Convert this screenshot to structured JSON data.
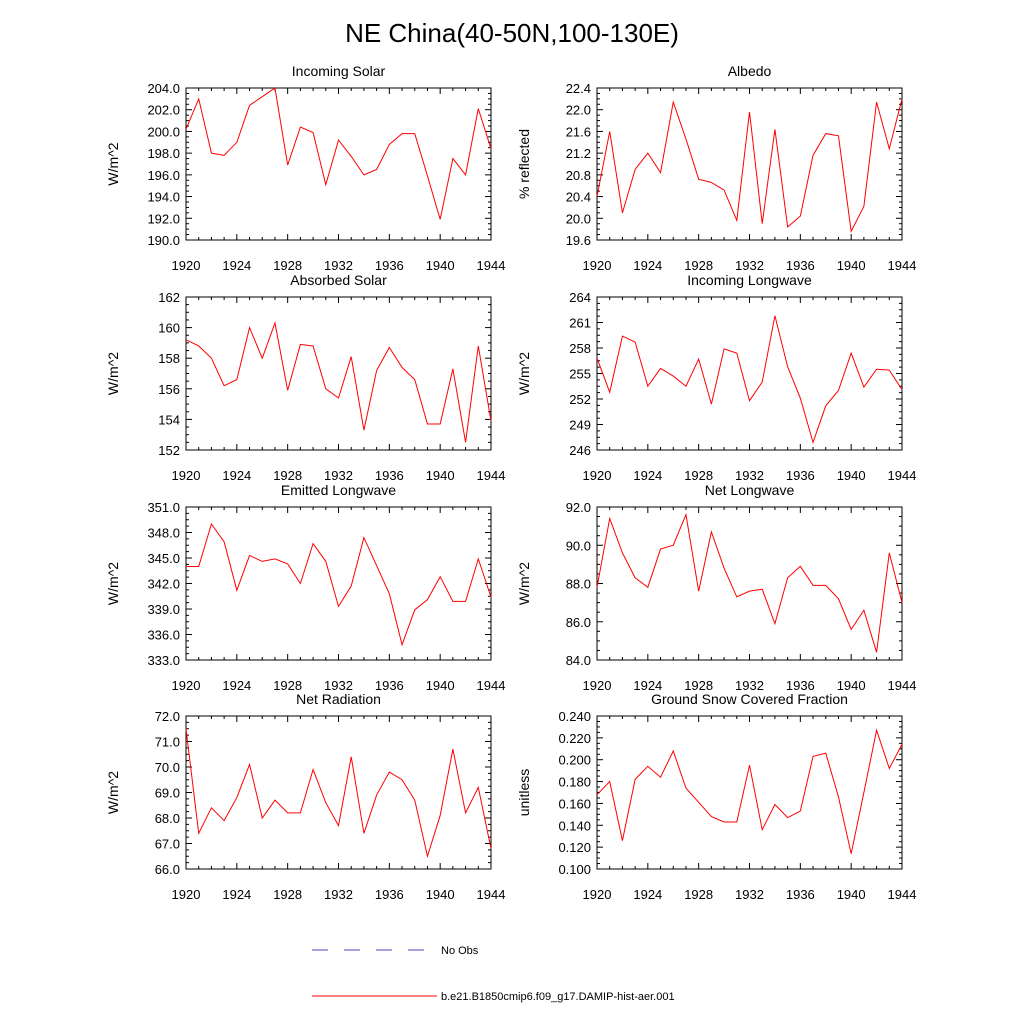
{
  "title": "NE China(40-50N,100-130E)",
  "chart_data": [
    {
      "type": "line",
      "title": "Incoming Solar",
      "ylabel": "W/m^2",
      "xlim": [
        1920,
        1944
      ],
      "ylim": [
        190,
        204
      ],
      "xticks": [
        1920,
        1924,
        1928,
        1932,
        1936,
        1940,
        1944
      ],
      "yticks": [
        190,
        192,
        194,
        196,
        198,
        200,
        202,
        204
      ],
      "ytick_labels": [
        "190.0",
        "192.0",
        "194.0",
        "196.0",
        "198.0",
        "200.0",
        "202.0",
        "204.0"
      ],
      "x": [
        1920,
        1921,
        1922,
        1923,
        1924,
        1925,
        1926,
        1927,
        1928,
        1929,
        1930,
        1931,
        1932,
        1933,
        1934,
        1935,
        1936,
        1937,
        1938,
        1939,
        1940,
        1941,
        1942,
        1943,
        1944
      ],
      "series": [
        {
          "values": [
            200.2,
            203.0,
            198.0,
            197.8,
            199.0,
            202.4,
            203.2,
            204.0,
            196.9,
            200.4,
            199.9,
            195.1,
            199.2,
            197.7,
            196.0,
            196.5,
            198.8,
            199.8,
            199.8,
            195.9,
            191.9,
            197.5,
            196.0,
            202.1,
            198.4
          ]
        }
      ]
    },
    {
      "type": "line",
      "title": "Albedo",
      "ylabel": "% reflected",
      "xlim": [
        1920,
        1944
      ],
      "ylim": [
        19.6,
        22.4
      ],
      "xticks": [
        1920,
        1924,
        1928,
        1932,
        1936,
        1940,
        1944
      ],
      "yticks": [
        19.6,
        20.0,
        20.4,
        20.8,
        21.2,
        21.6,
        22.0,
        22.4
      ],
      "ytick_labels": [
        "19.6",
        "20.0",
        "20.4",
        "20.8",
        "21.2",
        "21.6",
        "22.0",
        "22.4"
      ],
      "x": [
        1920,
        1921,
        1922,
        1923,
        1924,
        1925,
        1926,
        1927,
        1928,
        1929,
        1930,
        1931,
        1932,
        1933,
        1934,
        1935,
        1936,
        1937,
        1938,
        1939,
        1940,
        1941,
        1942,
        1943,
        1944
      ],
      "series": [
        {
          "values": [
            20.4,
            21.6,
            20.1,
            20.9,
            21.2,
            20.84,
            22.14,
            21.46,
            20.72,
            20.66,
            20.52,
            19.96,
            21.96,
            19.9,
            21.64,
            19.84,
            20.04,
            21.16,
            21.56,
            21.52,
            19.76,
            20.22,
            22.14,
            21.28,
            22.2
          ]
        }
      ]
    },
    {
      "type": "line",
      "title": "Absorbed Solar",
      "ylabel": "W/m^2",
      "xlim": [
        1920,
        1944
      ],
      "ylim": [
        152,
        162
      ],
      "xticks": [
        1920,
        1924,
        1928,
        1932,
        1936,
        1940,
        1944
      ],
      "yticks": [
        152,
        154,
        156,
        158,
        160,
        162
      ],
      "ytick_labels": [
        "152",
        "154",
        "156",
        "158",
        "160",
        "162"
      ],
      "x": [
        1920,
        1921,
        1922,
        1923,
        1924,
        1925,
        1926,
        1927,
        1928,
        1929,
        1930,
        1931,
        1932,
        1933,
        1934,
        1935,
        1936,
        1937,
        1938,
        1939,
        1940,
        1941,
        1942,
        1943,
        1944
      ],
      "series": [
        {
          "values": [
            159.2,
            158.8,
            158.0,
            156.2,
            156.6,
            160.0,
            158.0,
            160.3,
            155.9,
            158.9,
            158.8,
            156.0,
            155.4,
            158.1,
            153.3,
            157.2,
            158.7,
            157.4,
            156.6,
            153.7,
            153.7,
            157.3,
            152.5,
            158.8,
            153.9
          ]
        }
      ]
    },
    {
      "type": "line",
      "title": "Incoming Longwave",
      "ylabel": "W/m^2",
      "xlim": [
        1920,
        1944
      ],
      "ylim": [
        246,
        264
      ],
      "xticks": [
        1920,
        1924,
        1928,
        1932,
        1936,
        1940,
        1944
      ],
      "yticks": [
        246,
        249,
        252,
        255,
        258,
        261,
        264
      ],
      "ytick_labels": [
        "246",
        "249",
        "252",
        "255",
        "258",
        "261",
        "264"
      ],
      "x": [
        1920,
        1921,
        1922,
        1923,
        1924,
        1925,
        1926,
        1927,
        1928,
        1929,
        1930,
        1931,
        1932,
        1933,
        1934,
        1935,
        1936,
        1937,
        1938,
        1939,
        1940,
        1941,
        1942,
        1943,
        1944
      ],
      "series": [
        {
          "values": [
            256.8,
            252.8,
            259.4,
            258.7,
            253.5,
            255.6,
            254.7,
            253.5,
            256.7,
            251.4,
            257.9,
            257.4,
            251.8,
            254.0,
            261.8,
            255.8,
            252.1,
            246.9,
            251.2,
            253.0,
            257.4,
            253.4,
            255.5,
            255.4,
            253.1
          ]
        }
      ]
    },
    {
      "type": "line",
      "title": "Emitted Longwave",
      "ylabel": "W/m^2",
      "xlim": [
        1920,
        1944
      ],
      "ylim": [
        333,
        351
      ],
      "xticks": [
        1920,
        1924,
        1928,
        1932,
        1936,
        1940,
        1944
      ],
      "yticks": [
        333,
        336,
        339,
        342,
        345,
        348,
        351
      ],
      "ytick_labels": [
        "333.0",
        "336.0",
        "339.0",
        "342.0",
        "345.0",
        "348.0",
        "351.0"
      ],
      "x": [
        1920,
        1921,
        1922,
        1923,
        1924,
        1925,
        1926,
        1927,
        1928,
        1929,
        1930,
        1931,
        1932,
        1933,
        1934,
        1935,
        1936,
        1937,
        1938,
        1939,
        1940,
        1941,
        1942,
        1943,
        1944
      ],
      "series": [
        {
          "values": [
            344.0,
            344.0,
            349.0,
            346.9,
            341.2,
            345.3,
            344.6,
            344.9,
            344.3,
            342.0,
            346.7,
            344.6,
            339.3,
            341.7,
            347.4,
            344.1,
            340.8,
            334.8,
            338.9,
            340.1,
            342.8,
            339.9,
            339.9,
            344.9,
            340.4
          ]
        }
      ]
    },
    {
      "type": "line",
      "title": "Net Longwave",
      "ylabel": "W/m^2",
      "xlim": [
        1920,
        1944
      ],
      "ylim": [
        84,
        92
      ],
      "xticks": [
        1920,
        1924,
        1928,
        1932,
        1936,
        1940,
        1944
      ],
      "yticks": [
        84,
        86,
        88,
        90,
        92
      ],
      "ytick_labels": [
        "84.0",
        "86.0",
        "88.0",
        "90.0",
        "92.0"
      ],
      "x": [
        1920,
        1921,
        1922,
        1923,
        1924,
        1925,
        1926,
        1927,
        1928,
        1929,
        1930,
        1931,
        1932,
        1933,
        1934,
        1935,
        1936,
        1937,
        1938,
        1939,
        1940,
        1941,
        1942,
        1943,
        1944
      ],
      "series": [
        {
          "values": [
            87.8,
            91.4,
            89.6,
            88.3,
            87.8,
            89.8,
            90.0,
            91.6,
            87.6,
            90.7,
            88.8,
            87.3,
            87.6,
            87.7,
            85.9,
            88.3,
            88.9,
            87.9,
            87.9,
            87.2,
            85.6,
            86.6,
            84.4,
            89.6,
            87.0
          ]
        }
      ]
    },
    {
      "type": "line",
      "title": "Net Radiation",
      "ylabel": "W/m^2",
      "xlim": [
        1920,
        1944
      ],
      "ylim": [
        66,
        72
      ],
      "xticks": [
        1920,
        1924,
        1928,
        1932,
        1936,
        1940,
        1944
      ],
      "yticks": [
        66,
        67,
        68,
        69,
        70,
        71,
        72
      ],
      "ytick_labels": [
        "66.0",
        "67.0",
        "68.0",
        "69.0",
        "70.0",
        "71.0",
        "72.0"
      ],
      "x": [
        1920,
        1921,
        1922,
        1923,
        1924,
        1925,
        1926,
        1927,
        1928,
        1929,
        1930,
        1931,
        1932,
        1933,
        1934,
        1935,
        1936,
        1937,
        1938,
        1939,
        1940,
        1941,
        1942,
        1943,
        1944
      ],
      "series": [
        {
          "values": [
            71.5,
            67.4,
            68.4,
            67.9,
            68.8,
            70.1,
            68.0,
            68.7,
            68.2,
            68.2,
            69.9,
            68.6,
            67.7,
            70.4,
            67.4,
            68.9,
            69.8,
            69.5,
            68.7,
            66.5,
            68.1,
            70.7,
            68.2,
            69.2,
            66.8
          ]
        }
      ]
    },
    {
      "type": "line",
      "title": "Ground Snow Covered Fraction",
      "ylabel": "unitless",
      "xlim": [
        1920,
        1944
      ],
      "ylim": [
        0.1,
        0.24
      ],
      "xticks": [
        1920,
        1924,
        1928,
        1932,
        1936,
        1940,
        1944
      ],
      "yticks": [
        0.1,
        0.12,
        0.14,
        0.16,
        0.18,
        0.2,
        0.22,
        0.24
      ],
      "ytick_labels": [
        "0.100",
        "0.120",
        "0.140",
        "0.160",
        "0.180",
        "0.200",
        "0.220",
        "0.240"
      ],
      "x": [
        1920,
        1921,
        1922,
        1923,
        1924,
        1925,
        1926,
        1927,
        1928,
        1929,
        1930,
        1931,
        1932,
        1933,
        1934,
        1935,
        1936,
        1937,
        1938,
        1939,
        1940,
        1941,
        1942,
        1943,
        1944
      ],
      "series": [
        {
          "values": [
            0.168,
            0.18,
            0.126,
            0.182,
            0.194,
            0.184,
            0.208,
            0.174,
            0.161,
            0.148,
            0.143,
            0.143,
            0.195,
            0.136,
            0.159,
            0.147,
            0.153,
            0.203,
            0.206,
            0.166,
            0.114,
            0.17,
            0.227,
            0.192,
            0.214
          ]
        }
      ]
    }
  ],
  "legend": {
    "no_obs_label": "No Obs",
    "run_label": "b.e21.B1850cmip6.f09_g17.DAMIP-hist-aer.001",
    "series_color": "#ff0000",
    "obs_color": "#4444cc"
  }
}
